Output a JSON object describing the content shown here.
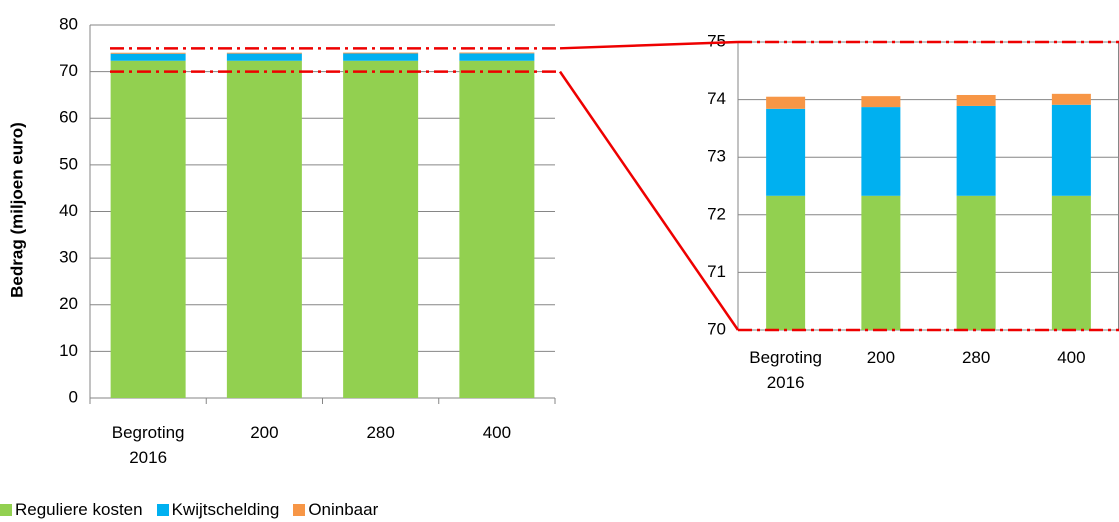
{
  "chart_data": [
    {
      "type": "bar",
      "stacked": true,
      "y_label": "Bedrag (miljoen euro)",
      "categories": [
        "Begroting 2016",
        "200",
        "280",
        "400"
      ],
      "series": [
        {
          "name": "Reguliere kosten",
          "color": "#92d050",
          "values": [
            72.33,
            72.33,
            72.33,
            72.33
          ]
        },
        {
          "name": "Kwijtschelding",
          "color": "#00b0f0",
          "values": [
            1.51,
            1.54,
            1.56,
            1.58
          ]
        },
        {
          "name": "Oninbaar",
          "color": "#f79646",
          "values": [
            0.21,
            0.19,
            0.19,
            0.19
          ]
        }
      ],
      "ylim": [
        0,
        80
      ],
      "yticks": [
        0,
        10,
        20,
        30,
        40,
        50,
        60,
        70,
        80
      ],
      "grid": true
    },
    {
      "type": "bar",
      "stacked": true,
      "categories": [
        "Begroting 2016",
        "200",
        "280",
        "400"
      ],
      "ylim": [
        70,
        75
      ],
      "yticks": [
        70,
        71,
        72,
        73,
        74,
        75
      ],
      "grid": true
    }
  ]
}
